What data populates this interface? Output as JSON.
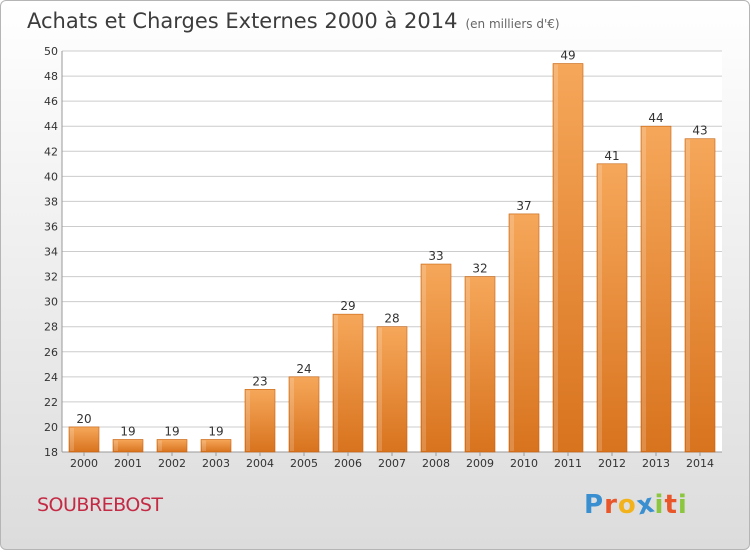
{
  "header": {
    "title": "Achats et Charges Externes 2000 à 2014",
    "subtitle": "(en milliers d'€)"
  },
  "footer": {
    "commune": "SOUBREBOST",
    "logo_letters": [
      "P",
      "r",
      "o",
      "x",
      "i",
      "t",
      "i"
    ],
    "logo_colors": [
      "#3a8fd0",
      "#e8562a",
      "#f2b21b",
      "#3a8fd0",
      "#8cc63e",
      "#e8562a",
      "#8cc63e"
    ]
  },
  "colors": {
    "bar_top": "#f6a75a",
    "bar_bottom": "#d8731e",
    "bar_edge": "#c46210",
    "grid": "#cccccc",
    "text": "#333333"
  },
  "chart_data": {
    "type": "bar",
    "categories": [
      "2000",
      "2001",
      "2002",
      "2003",
      "2004",
      "2005",
      "2006",
      "2007",
      "2008",
      "2009",
      "2010",
      "2011",
      "2012",
      "2013",
      "2014"
    ],
    "values": [
      20,
      19,
      19,
      19,
      23,
      24,
      29,
      28,
      33,
      32,
      37,
      49,
      41,
      44,
      43
    ],
    "ylim": [
      18,
      50
    ],
    "yticks": [
      18,
      20,
      22,
      24,
      26,
      28,
      30,
      32,
      34,
      36,
      38,
      40,
      42,
      44,
      46,
      48,
      50
    ],
    "grid": true,
    "data_labels": true
  }
}
